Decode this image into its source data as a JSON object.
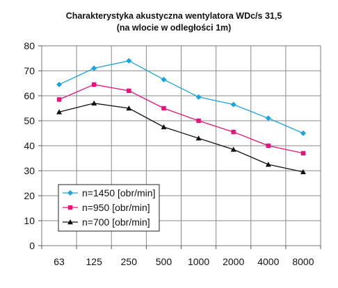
{
  "chart_data": {
    "type": "line",
    "title": "Charakterystyka akustyczna wentylatora WDc/s 31,5",
    "subtitle": "(na wlocie w odległości 1m)",
    "xlabel": "",
    "ylabel": "",
    "categories": [
      "63",
      "125",
      "250",
      "500",
      "1000",
      "2000",
      "4000",
      "8000"
    ],
    "ylim": [
      0,
      80
    ],
    "yticks": [
      "0",
      "10",
      "20",
      "30",
      "40",
      "50",
      "60",
      "70",
      "80"
    ],
    "grid": true,
    "legend": "bottom-left",
    "series": [
      {
        "name": "n=1450 [obr/min]",
        "color": "#1aa3dc",
        "marker": "diamond",
        "values": [
          64.5,
          71,
          74,
          66.5,
          59.5,
          56.5,
          51,
          45
        ]
      },
      {
        "name": "n=950 [obr/min]",
        "color": "#e5137a",
        "marker": "square",
        "values": [
          58.5,
          64.5,
          62,
          55,
          50,
          45.5,
          40,
          37
        ]
      },
      {
        "name": "n=700 [obr/min]",
        "color": "#111111",
        "marker": "triangle",
        "values": [
          53.5,
          57,
          55,
          47.5,
          43,
          38.5,
          32.5,
          29.5
        ]
      }
    ]
  }
}
